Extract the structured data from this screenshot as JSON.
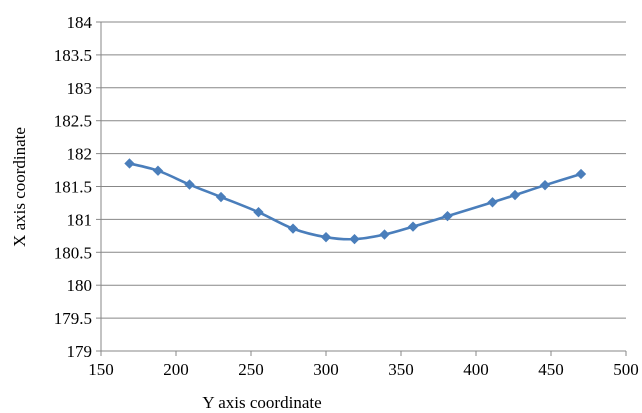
{
  "chart_data": {
    "type": "line",
    "title": "",
    "xlabel": "Y axis coordinate",
    "ylabel": "X axis coordinate",
    "xlim": [
      150,
      500
    ],
    "ylim": [
      179,
      184
    ],
    "x_ticks": [
      150,
      200,
      250,
      300,
      350,
      400,
      450,
      500
    ],
    "y_ticks": [
      179,
      179.5,
      180,
      180.5,
      181,
      181.5,
      182,
      182.5,
      183,
      183.5,
      184
    ],
    "x_tick_labels": [
      "150",
      "200",
      "250",
      "300",
      "350",
      "400",
      "450",
      "500"
    ],
    "y_tick_labels": [
      "179",
      "179.5",
      "180",
      "180.5",
      "181",
      "181.5",
      "182",
      "182.5",
      "183",
      "183.5",
      "184"
    ],
    "grid": "horizontal",
    "legend": "none",
    "series_color": "#4a7ebb",
    "series": [
      {
        "x": [
          169,
          188,
          209,
          230,
          255,
          278,
          300,
          319,
          339,
          358,
          381,
          411,
          426,
          446,
          470
        ],
        "y": [
          181.85,
          181.74,
          181.53,
          181.34,
          181.11,
          180.86,
          180.73,
          180.7,
          180.77,
          180.89,
          181.05,
          181.26,
          181.37,
          181.52,
          181.69
        ]
      }
    ]
  }
}
